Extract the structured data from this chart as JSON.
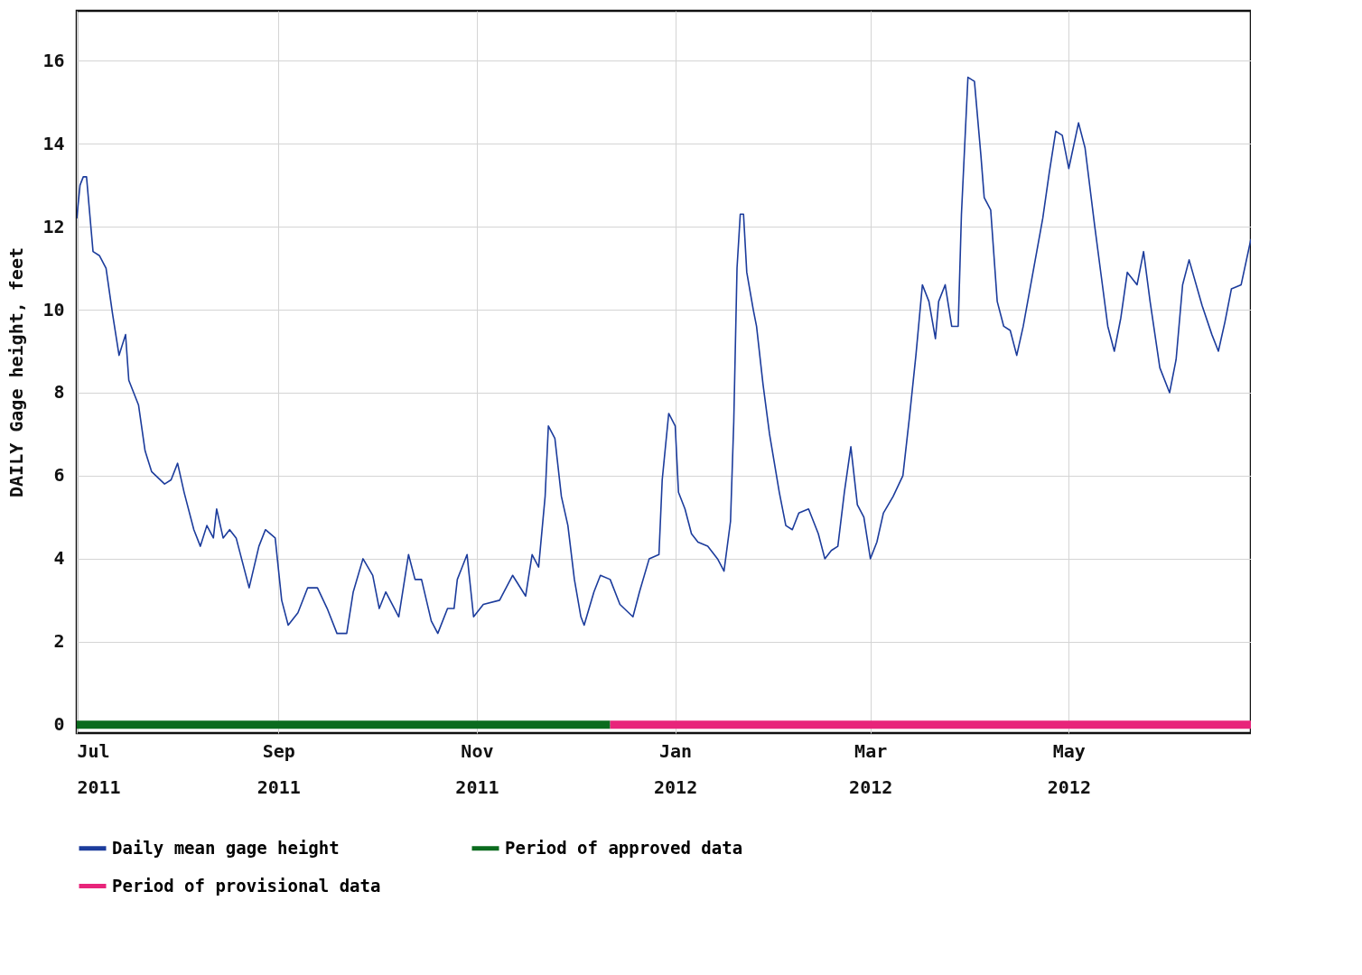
{
  "chart_data": {
    "type": "line",
    "ylabel": "DAILY Gage height, feet",
    "x": [
      "2011-07-01",
      "2011-07-02",
      "2011-07-03",
      "2011-07-04",
      "2011-07-06",
      "2011-07-08",
      "2011-07-10",
      "2011-07-12",
      "2011-07-14",
      "2011-07-16",
      "2011-07-17",
      "2011-07-20",
      "2011-07-22",
      "2011-07-24",
      "2011-07-28",
      "2011-07-30",
      "2011-08-01",
      "2011-08-03",
      "2011-08-06",
      "2011-08-08",
      "2011-08-10",
      "2011-08-12",
      "2011-08-13",
      "2011-08-15",
      "2011-08-17",
      "2011-08-19",
      "2011-08-23",
      "2011-08-26",
      "2011-08-28",
      "2011-08-31",
      "2011-09-02",
      "2011-09-04",
      "2011-09-07",
      "2011-09-10",
      "2011-09-13",
      "2011-09-16",
      "2011-09-19",
      "2011-09-22",
      "2011-09-24",
      "2011-09-27",
      "2011-09-30",
      "2011-10-02",
      "2011-10-04",
      "2011-10-08",
      "2011-10-11",
      "2011-10-13",
      "2011-10-15",
      "2011-10-18",
      "2011-10-20",
      "2011-10-23",
      "2011-10-25",
      "2011-10-26",
      "2011-10-29",
      "2011-10-31",
      "2011-11-03",
      "2011-11-08",
      "2011-11-12",
      "2011-11-16",
      "2011-11-18",
      "2011-11-20",
      "2011-11-22",
      "2011-11-23",
      "2011-11-25",
      "2011-11-27",
      "2011-11-29",
      "2011-12-01",
      "2011-12-03",
      "2011-12-04",
      "2011-12-07",
      "2011-12-09",
      "2011-12-12",
      "2011-12-15",
      "2011-12-19",
      "2011-12-21",
      "2011-12-24",
      "2011-12-27",
      "2011-12-28",
      "2011-12-30",
      "2012-01-01",
      "2012-01-02",
      "2012-01-04",
      "2012-01-06",
      "2012-01-08",
      "2012-01-11",
      "2012-01-14",
      "2012-01-16",
      "2012-01-18",
      "2012-01-19",
      "2012-01-20",
      "2012-01-21",
      "2012-01-22",
      "2012-01-23",
      "2012-01-25",
      "2012-01-26",
      "2012-01-28",
      "2012-01-30",
      "2012-02-02",
      "2012-02-04",
      "2012-02-06",
      "2012-02-08",
      "2012-02-11",
      "2012-02-14",
      "2012-02-16",
      "2012-02-18",
      "2012-02-20",
      "2012-02-22",
      "2012-02-24",
      "2012-02-26",
      "2012-02-28",
      "2012-03-01",
      "2012-03-03",
      "2012-03-05",
      "2012-03-08",
      "2012-03-11",
      "2012-03-13",
      "2012-03-15",
      "2012-03-17",
      "2012-03-19",
      "2012-03-21",
      "2012-03-22",
      "2012-03-24",
      "2012-03-26",
      "2012-03-28",
      "2012-03-29",
      "2012-03-31",
      "2012-04-02",
      "2012-04-04",
      "2012-04-05",
      "2012-04-07",
      "2012-04-09",
      "2012-04-11",
      "2012-04-13",
      "2012-04-15",
      "2012-04-17",
      "2012-04-20",
      "2012-04-23",
      "2012-04-25",
      "2012-04-27",
      "2012-04-29",
      "2012-05-01",
      "2012-05-04",
      "2012-05-06",
      "2012-05-09",
      "2012-05-11",
      "2012-05-13",
      "2012-05-15",
      "2012-05-17",
      "2012-05-19",
      "2012-05-22",
      "2012-05-24",
      "2012-05-26",
      "2012-05-29",
      "2012-06-01",
      "2012-06-03",
      "2012-06-05",
      "2012-06-07",
      "2012-06-11",
      "2012-06-14",
      "2012-06-16",
      "2012-06-18",
      "2012-06-20",
      "2012-06-23",
      "2012-06-26"
    ],
    "series": [
      {
        "name": "Daily mean gage height",
        "color": "#1c3c9c",
        "values": [
          12.2,
          13.0,
          13.2,
          13.2,
          11.4,
          11.3,
          11.0,
          9.9,
          8.9,
          9.4,
          8.3,
          7.7,
          6.6,
          6.1,
          5.8,
          5.9,
          6.3,
          5.6,
          4.7,
          4.3,
          4.8,
          4.5,
          5.2,
          4.5,
          4.7,
          4.5,
          3.3,
          4.3,
          4.7,
          4.5,
          3.0,
          2.4,
          2.7,
          3.3,
          3.3,
          2.8,
          2.2,
          2.2,
          3.2,
          4.0,
          3.6,
          2.8,
          3.2,
          2.6,
          4.1,
          3.5,
          3.5,
          2.5,
          2.2,
          2.8,
          2.8,
          3.5,
          4.1,
          2.6,
          2.9,
          3.0,
          3.6,
          3.1,
          4.1,
          3.8,
          5.5,
          7.2,
          6.9,
          5.5,
          4.8,
          3.5,
          2.6,
          2.4,
          3.2,
          3.6,
          3.5,
          2.9,
          2.6,
          3.2,
          4.0,
          4.1,
          5.9,
          7.5,
          7.2,
          5.6,
          5.2,
          4.6,
          4.4,
          4.3,
          4.0,
          3.7,
          4.9,
          7.3,
          11.0,
          12.3,
          12.3,
          10.9,
          10.0,
          9.6,
          8.2,
          7.0,
          5.6,
          4.8,
          4.7,
          5.1,
          5.2,
          4.6,
          4.0,
          4.2,
          4.3,
          5.6,
          6.7,
          5.3,
          5.0,
          4.0,
          4.4,
          5.1,
          5.5,
          6.0,
          7.4,
          8.9,
          10.6,
          10.2,
          9.3,
          10.2,
          10.6,
          9.6,
          9.6,
          12.3,
          15.6,
          15.5,
          13.7,
          12.7,
          12.4,
          10.2,
          9.6,
          9.5,
          8.9,
          9.6,
          10.9,
          12.2,
          13.3,
          14.3,
          14.2,
          13.4,
          14.5,
          13.9,
          12.0,
          10.8,
          9.6,
          9.0,
          9.8,
          10.9,
          10.6,
          11.4,
          10.2,
          8.6,
          8.0,
          8.8,
          10.6,
          11.2,
          10.1,
          9.4,
          9.0,
          9.7,
          10.5,
          10.6,
          11.7
        ]
      },
      {
        "name": "Period of approved data",
        "color": "#0b6b1e",
        "x": [
          "2011-07-01",
          "2011-12-12"
        ],
        "values": [
          0,
          0
        ]
      },
      {
        "name": "Period of provisional data",
        "color": "#e8247a",
        "x": [
          "2011-12-12",
          "2012-06-26"
        ],
        "values": [
          0,
          0
        ]
      }
    ],
    "xlim": [
      "2011-07-01",
      "2012-06-26"
    ],
    "xticks": [
      {
        "value": "2011-07-01",
        "label": "Jul 2011"
      },
      {
        "value": "2011-09-01",
        "label": "Sep 2011"
      },
      {
        "value": "2011-11-01",
        "label": "Nov 2011"
      },
      {
        "value": "2012-01-01",
        "label": "Jan 2012"
      },
      {
        "value": "2012-03-01",
        "label": "Mar 2012"
      },
      {
        "value": "2012-05-01",
        "label": "May 2012"
      }
    ],
    "ylim": [
      -0.2,
      17.2
    ],
    "yticks": [
      0,
      2,
      4,
      6,
      8,
      10,
      12,
      14,
      16
    ],
    "grid": true,
    "legend": "bottom"
  }
}
